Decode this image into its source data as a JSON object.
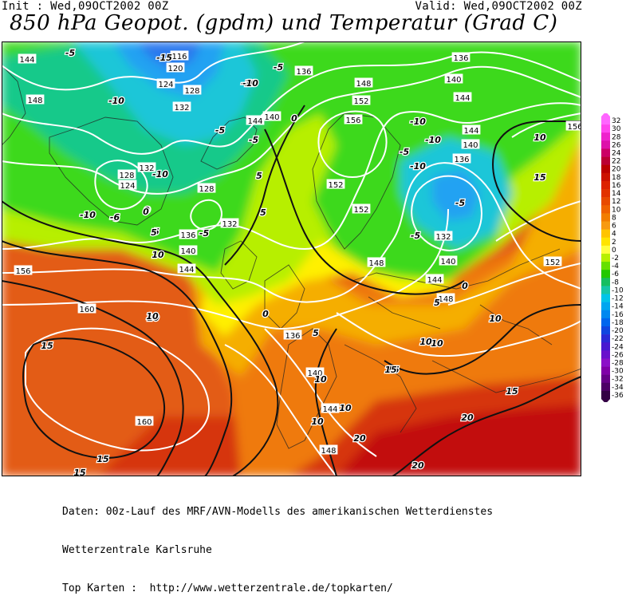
{
  "header": {
    "init": "Init : Wed,09OCT2002 00Z",
    "valid": "Valid: Wed,09OCT2002 00Z",
    "title": "850 hPa Geopot. (gpdm) und Temperatur (Grad C)"
  },
  "legend": {
    "labels": [
      "32",
      "30",
      "28",
      "26",
      "24",
      "22",
      "20",
      "18",
      "16",
      "14",
      "12",
      "10",
      "8",
      "6",
      "4",
      "2",
      "0",
      "-2",
      "-4",
      "-6",
      "-8",
      "-10",
      "-12",
      "-14",
      "-16",
      "-18",
      "-20",
      "-22",
      "-24",
      "-26",
      "-28",
      "-30",
      "-32",
      "-34",
      "-36"
    ],
    "colors": [
      "#ff66ff",
      "#ff44ee",
      "#ee22cc",
      "#dd11aa",
      "#cc0066",
      "#bb0033",
      "#bb0000",
      "#cc1100",
      "#dd2200",
      "#e23300",
      "#e84a00",
      "#ef6200",
      "#f27e00",
      "#f79a10",
      "#ffc400",
      "#ffe400",
      "#ffff40",
      "#b6f000",
      "#66e000",
      "#22c800",
      "#16be60",
      "#16c6a6",
      "#00c4e8",
      "#00a6f0",
      "#0088f0",
      "#0066ee",
      "#1046e0",
      "#2a2ad6",
      "#4818d0",
      "#6a10cc",
      "#8c10c8",
      "#8000a8",
      "#660088",
      "#4c0066",
      "#330044"
    ]
  },
  "map": {
    "colors": {
      "sea": "#e35b13",
      "south": "#d63410",
      "deep_south": "#c21010",
      "orange": "#ef7a0a",
      "yellow_orange": "#f5ae00",
      "yellow": "#fff000",
      "green_yellow": "#b7ef00",
      "green": "#3cd91a",
      "teal": "#18c98a",
      "cyan": "#1ac6d8",
      "light_blue": "#22a2f2",
      "blue": "#2c78ee"
    },
    "geopotential_labels": [
      "144",
      "116",
      "120",
      "124",
      "128",
      "132",
      "148",
      "140",
      "144",
      "136",
      "136",
      "140",
      "144",
      "148",
      "152",
      "156",
      "144",
      "140",
      "136",
      "156",
      "132",
      "128",
      "124",
      "128",
      "132",
      "136",
      "140",
      "144",
      "152",
      "152",
      "132",
      "140",
      "144",
      "148",
      "148",
      "152",
      "156",
      "160",
      "136",
      "140",
      "144",
      "148",
      "160"
    ],
    "temperature_labels": [
      "-5",
      "-15",
      "-10",
      "-10",
      "-5",
      "-10",
      "-5",
      "0",
      "-5",
      "-10",
      "-10",
      "-5",
      "-10",
      "-5",
      "0",
      "-5",
      "0",
      "5",
      "-5",
      "-6",
      "-10",
      "0",
      "5",
      "10",
      "5",
      "0",
      "5",
      "10",
      "10",
      "15",
      "10",
      "15",
      "10",
      "10",
      "20",
      "15",
      "20",
      "15",
      "5",
      "10",
      "10",
      "5",
      "20",
      "10",
      "15",
      "-5",
      "15",
      "10",
      "0",
      "-10",
      "15"
    ]
  },
  "footer": {
    "line1": "Daten: 00z-Lauf des MRF/AVN-Modells des amerikanischen Wetterdienstes",
    "line2": "Wetterzentrale Karlsruhe",
    "line3": "Top Karten :  http://www.wetterzentrale.de/topkarten/"
  }
}
